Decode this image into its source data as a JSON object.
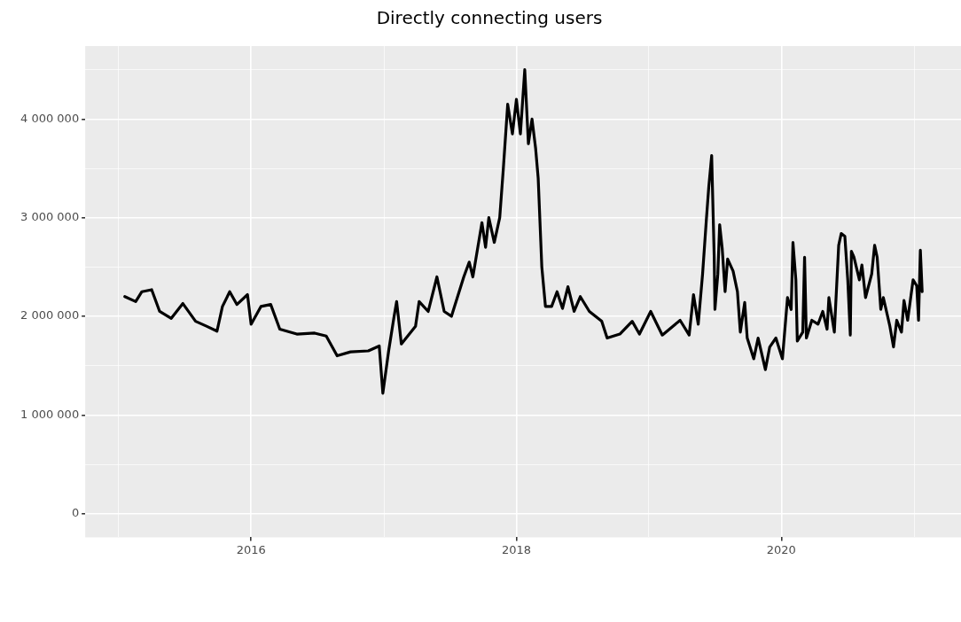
{
  "chart_data": {
    "type": "line",
    "title": "Directly connecting users",
    "x": [
      "2015-01-18",
      "2015-02-17",
      "2015-03-06",
      "2015-04-02",
      "2015-04-24",
      "2015-05-26",
      "2015-06-27",
      "2015-08-01",
      "2015-08-31",
      "2015-09-29",
      "2015-10-14",
      "2015-11-03",
      "2015-11-23",
      "2015-12-22",
      "2016-01-01",
      "2016-01-28",
      "2016-02-24",
      "2016-03-20",
      "2016-05-06",
      "2016-06-24",
      "2016-07-26",
      "2016-08-25",
      "2016-10-01",
      "2016-11-19",
      "2016-12-19",
      "2016-12-29",
      "2017-01-14",
      "2017-01-29",
      "2017-02-05",
      "2017-02-18",
      "2017-03-29",
      "2017-04-08",
      "2017-05-03",
      "2017-05-27",
      "2017-06-16",
      "2017-07-06",
      "2017-08-09",
      "2017-08-24",
      "2017-09-03",
      "2017-09-28",
      "2017-10-08",
      "2017-10-17",
      "2017-11-01",
      "2017-11-16",
      "2017-11-26",
      "2017-12-08",
      "2017-12-21",
      "2018-01-01",
      "2018-01-12",
      "2018-01-24",
      "2018-02-03",
      "2018-02-13",
      "2018-02-23",
      "2018-03-02",
      "2018-03-12",
      "2018-03-22",
      "2018-04-08",
      "2018-04-23",
      "2018-05-08",
      "2018-05-23",
      "2018-06-09",
      "2018-06-26",
      "2018-07-21",
      "2018-08-24",
      "2018-09-08",
      "2018-10-13",
      "2018-11-16",
      "2018-12-06",
      "2019-01-06",
      "2019-02-07",
      "2019-03-28",
      "2019-04-22",
      "2019-05-04",
      "2019-05-17",
      "2019-05-29",
      "2019-06-08",
      "2019-06-15",
      "2019-06-23",
      "2019-06-30",
      "2019-07-02",
      "2019-07-10",
      "2019-07-15",
      "2019-07-22",
      "2019-07-30",
      "2019-08-06",
      "2019-08-21",
      "2019-09-02",
      "2019-09-10",
      "2019-09-22",
      "2019-09-29",
      "2019-10-17",
      "2019-10-29",
      "2019-11-18",
      "2019-11-30",
      "2019-12-17",
      "2020-01-04",
      "2020-01-18",
      "2020-01-28",
      "2020-02-02",
      "2020-02-10",
      "2020-02-14",
      "2020-02-29",
      "2020-03-05",
      "2020-03-10",
      "2020-03-25",
      "2020-04-11",
      "2020-04-24",
      "2020-05-06",
      "2020-05-11",
      "2020-05-26",
      "2020-06-07",
      "2020-06-14",
      "2020-06-24",
      "2020-07-02",
      "2020-07-09",
      "2020-07-12",
      "2020-07-19",
      "2020-08-03",
      "2020-08-10",
      "2020-08-20",
      "2020-09-06",
      "2020-09-14",
      "2020-09-21",
      "2020-10-01",
      "2020-10-08",
      "2020-10-26",
      "2020-11-05",
      "2020-11-14",
      "2020-11-27",
      "2020-12-04",
      "2020-12-14",
      "2020-12-29",
      "2021-01-08",
      "2021-01-13",
      "2021-01-18",
      "2021-01-23"
    ],
    "series": [
      {
        "color": "#000000",
        "values": [
          2200000,
          2150000,
          2250000,
          2270000,
          2050000,
          1980000,
          2130000,
          1950000,
          1900000,
          1850000,
          2100000,
          2250000,
          2120000,
          2220000,
          1920000,
          2100000,
          2120000,
          1870000,
          1820000,
          1830000,
          1800000,
          1600000,
          1640000,
          1650000,
          1700000,
          1220000,
          1650000,
          2000000,
          2150000,
          1720000,
          1900000,
          2150000,
          2050000,
          2400000,
          2050000,
          2000000,
          2400000,
          2550000,
          2400000,
          2950000,
          2700000,
          3000000,
          2750000,
          3000000,
          3500000,
          4150000,
          3850000,
          4200000,
          3850000,
          4500000,
          3750000,
          4000000,
          3700000,
          3400000,
          2500000,
          2100000,
          2100000,
          2250000,
          2080000,
          2300000,
          2050000,
          2200000,
          2050000,
          1950000,
          1780000,
          1820000,
          1950000,
          1820000,
          2050000,
          1810000,
          1960000,
          1810000,
          2220000,
          1920000,
          2430000,
          2960000,
          3310000,
          3630000,
          2600000,
          2070000,
          2430000,
          2930000,
          2690000,
          2250000,
          2580000,
          2460000,
          2250000,
          1840000,
          2140000,
          1780000,
          1570000,
          1780000,
          1460000,
          1690000,
          1780000,
          1570000,
          2190000,
          2070000,
          2750000,
          2370000,
          1750000,
          1840000,
          2600000,
          1780000,
          1960000,
          1920000,
          2050000,
          1870000,
          2190000,
          1840000,
          2720000,
          2840000,
          2810000,
          2370000,
          1810000,
          2660000,
          2600000,
          2370000,
          2520000,
          2190000,
          2430000,
          2720000,
          2600000,
          2070000,
          2190000,
          1900000,
          1690000,
          1960000,
          1840000,
          2160000,
          1960000,
          2370000,
          2310000,
          1960000,
          2670000,
          2250000
        ]
      }
    ],
    "xlim": [
      "2014-10-01",
      "2021-05-10"
    ],
    "xticks": [
      {
        "value": "2015",
        "label": null
      },
      {
        "value": "2016",
        "label": "2016"
      },
      {
        "value": "2017",
        "label": null
      },
      {
        "value": "2018",
        "label": "2018"
      },
      {
        "value": "2019",
        "label": null
      },
      {
        "value": "2020",
        "label": "2020"
      },
      {
        "value": "2021",
        "label": null
      }
    ],
    "ylim": [
      -240000,
      4740000
    ],
    "yticks": [
      {
        "value": 0,
        "label": "0"
      },
      {
        "value": 500000,
        "label": null
      },
      {
        "value": 1000000,
        "label": "1 000 000"
      },
      {
        "value": 1500000,
        "label": null
      },
      {
        "value": 2000000,
        "label": "2 000 000"
      },
      {
        "value": 2500000,
        "label": null
      },
      {
        "value": 3000000,
        "label": "3 000 000"
      },
      {
        "value": 3500000,
        "label": null
      },
      {
        "value": 4000000,
        "label": "4 000 000"
      },
      {
        "value": 4500000,
        "label": null
      }
    ],
    "grid": true,
    "legend": false,
    "marker": "none",
    "line_style": "solid"
  }
}
